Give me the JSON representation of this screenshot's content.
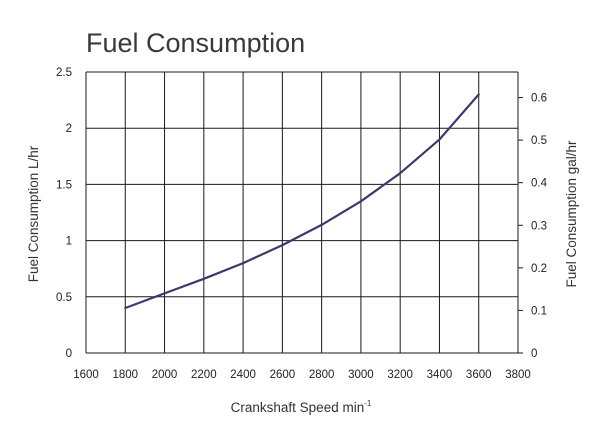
{
  "chart_data": {
    "type": "line",
    "title": "Fuel Consumption",
    "xlabel": "Crankshaft Speed min",
    "xlabel_superscript": "-1",
    "ylabel": "Fuel Consumption L/hr",
    "y2label": "Fuel Consumption gal/hr",
    "xlim": [
      1600,
      3800
    ],
    "ylim": [
      0,
      2.5
    ],
    "y2lim": [
      0,
      0.66
    ],
    "x_ticks": [
      1600,
      1800,
      2000,
      2200,
      2400,
      2600,
      2800,
      3000,
      3200,
      3400,
      3600,
      3800
    ],
    "y_ticks": [
      0,
      0.5,
      1,
      1.5,
      2,
      2.5
    ],
    "y2_ticks": [
      0,
      0.1,
      0.2,
      0.3,
      0.4,
      0.5,
      0.6
    ],
    "grid": "vertical and horizontal",
    "line_color": "#3b3a6e",
    "series": [
      {
        "x": [
          1800,
          2000,
          2200,
          2400,
          2600,
          2800,
          3000,
          3200,
          3400,
          3600
        ],
        "values": [
          0.4,
          0.53,
          0.66,
          0.8,
          0.96,
          1.14,
          1.35,
          1.6,
          1.9,
          2.3
        ]
      }
    ]
  }
}
